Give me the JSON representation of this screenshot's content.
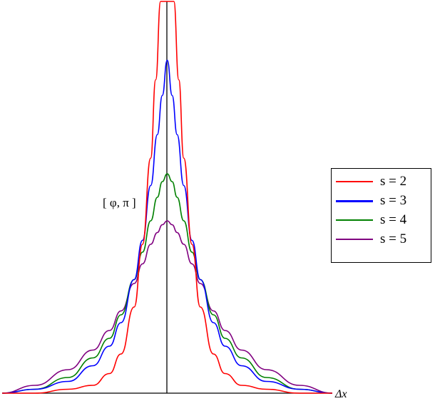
{
  "chart_data": {
    "type": "line",
    "xlabel": "Δx",
    "ylabel": "[ φ, π ]",
    "series": [
      {
        "name": "s = 2",
        "color": "#ff0000",
        "x": [
          -1.0,
          -0.8,
          -0.6,
          -0.45,
          -0.35,
          -0.28,
          -0.2,
          -0.15,
          -0.1,
          -0.07,
          -0.04,
          -0.02,
          0.0,
          0.02,
          0.04,
          0.07,
          0.1,
          0.15,
          0.2,
          0.28,
          0.35,
          0.45,
          0.6,
          0.8,
          1.0
        ],
        "y": [
          0.0,
          0.0,
          0.01,
          0.02,
          0.05,
          0.1,
          0.22,
          0.38,
          0.6,
          0.8,
          1.0,
          1.0,
          1.0,
          1.0,
          1.0,
          0.8,
          0.6,
          0.38,
          0.22,
          0.1,
          0.05,
          0.02,
          0.01,
          0.0,
          0.0
        ]
      },
      {
        "name": "s = 3",
        "color": "#0000ff",
        "x": [
          -1.0,
          -0.8,
          -0.6,
          -0.45,
          -0.35,
          -0.28,
          -0.2,
          -0.15,
          -0.1,
          -0.06,
          -0.03,
          0.0,
          0.03,
          0.06,
          0.1,
          0.15,
          0.2,
          0.28,
          0.35,
          0.45,
          0.6,
          0.8,
          1.0
        ],
        "y": [
          0.0,
          0.01,
          0.03,
          0.07,
          0.12,
          0.18,
          0.29,
          0.39,
          0.53,
          0.66,
          0.76,
          0.85,
          0.76,
          0.66,
          0.53,
          0.39,
          0.29,
          0.18,
          0.12,
          0.07,
          0.03,
          0.01,
          0.0
        ]
      },
      {
        "name": "s = 4",
        "color": "#008000",
        "x": [
          -1.0,
          -0.8,
          -0.6,
          -0.45,
          -0.35,
          -0.28,
          -0.2,
          -0.15,
          -0.1,
          -0.06,
          -0.03,
          0.0,
          0.03,
          0.06,
          0.1,
          0.15,
          0.2,
          0.28,
          0.35,
          0.45,
          0.6,
          0.8,
          1.0
        ],
        "y": [
          0.0,
          0.01,
          0.04,
          0.09,
          0.14,
          0.2,
          0.29,
          0.36,
          0.44,
          0.5,
          0.54,
          0.56,
          0.54,
          0.5,
          0.44,
          0.36,
          0.29,
          0.2,
          0.14,
          0.09,
          0.04,
          0.01,
          0.0
        ]
      },
      {
        "name": "s = 5",
        "color": "#800080",
        "x": [
          -1.0,
          -0.8,
          -0.6,
          -0.45,
          -0.35,
          -0.28,
          -0.2,
          -0.15,
          -0.1,
          -0.06,
          -0.03,
          0.0,
          0.03,
          0.06,
          0.1,
          0.15,
          0.2,
          0.28,
          0.35,
          0.45,
          0.6,
          0.8,
          1.0
        ],
        "y": [
          0.0,
          0.02,
          0.06,
          0.11,
          0.16,
          0.21,
          0.28,
          0.33,
          0.38,
          0.41,
          0.43,
          0.44,
          0.43,
          0.41,
          0.38,
          0.33,
          0.28,
          0.21,
          0.16,
          0.11,
          0.06,
          0.02,
          0.0
        ]
      }
    ],
    "xlim": [
      -1.0,
      1.0
    ],
    "ylim": [
      0,
      1.0
    ],
    "grid": false,
    "legend_position": "right",
    "legend": [
      "s = 2",
      "s = 3",
      "s = 4",
      "s = 5"
    ]
  }
}
